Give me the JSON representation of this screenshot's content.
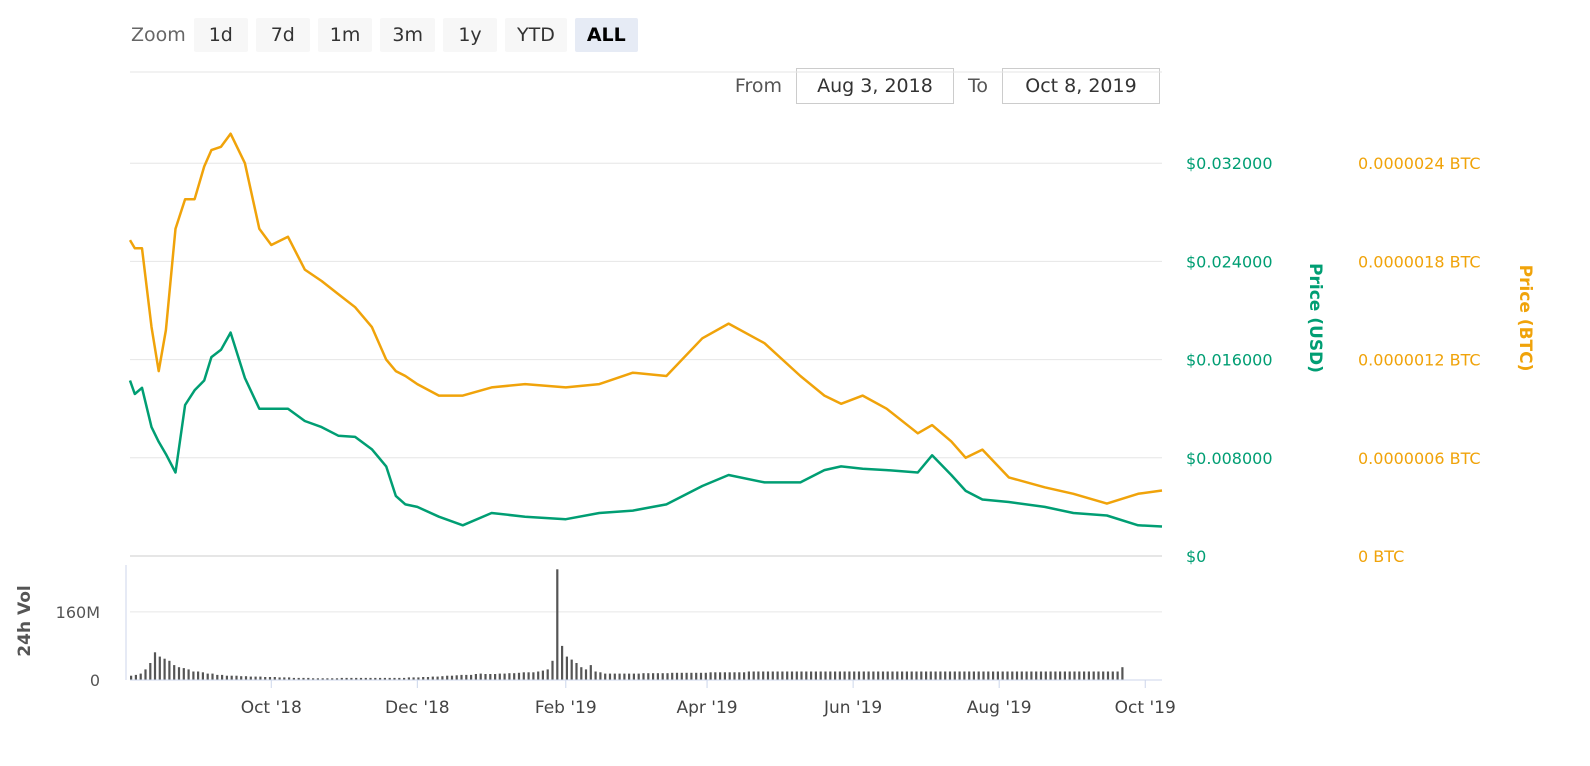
{
  "toolbar": {
    "zoom_label": "Zoom",
    "zoom_options": [
      "1d",
      "7d",
      "1m",
      "3m",
      "1y",
      "YTD",
      "ALL"
    ],
    "active_zoom": "ALL",
    "from_label": "From",
    "from_value": "Aug 3, 2018",
    "to_label": "To",
    "to_value": "Oct 8, 2019"
  },
  "chart_data": {
    "type": "line",
    "x_tick_labels": [
      "Oct '18",
      "Dec '18",
      "Feb '19",
      "Apr '19",
      "Jun '19",
      "Aug '19",
      "Oct '19"
    ],
    "x_tick_dates": [
      "2018-10-01",
      "2018-12-01",
      "2019-02-01",
      "2019-04-01",
      "2019-06-01",
      "2019-08-01",
      "2019-10-01"
    ],
    "x_range": [
      "2018-08-03",
      "2019-10-08"
    ],
    "y_usd": {
      "title": "Price (USD)",
      "range": [
        0,
        0.04
      ],
      "ticks": [
        0,
        0.008,
        0.016,
        0.024,
        0.032
      ],
      "tick_labels": [
        "$0",
        "$0.008000",
        "$0.016000",
        "$0.024000",
        "$0.032000"
      ],
      "color": "#009e73"
    },
    "y_btc": {
      "title": "Price (BTC)",
      "range": [
        0,
        3e-06
      ],
      "ticks": [
        0,
        6e-07,
        1.2e-06,
        1.8e-06,
        2.4e-06
      ],
      "tick_labels": [
        "0 BTC",
        "0.0000006 BTC",
        "0.0000012 BTC",
        "0.0000018 BTC",
        "0.0000024 BTC"
      ],
      "color": "#f0a30a"
    },
    "volume": {
      "title": "24h Vol",
      "range": [
        0,
        270000000
      ],
      "ticks": [
        0,
        160000000
      ],
      "tick_labels": [
        "0",
        "160M"
      ],
      "color": "#555555"
    },
    "grid": true,
    "series": [
      {
        "axis": "usd",
        "color": "#009e73",
        "x": [
          "2018-08-03",
          "2018-08-05",
          "2018-08-08",
          "2018-08-12",
          "2018-08-15",
          "2018-08-18",
          "2018-08-22",
          "2018-08-26",
          "2018-08-30",
          "2018-09-03",
          "2018-09-06",
          "2018-09-10",
          "2018-09-14",
          "2018-09-20",
          "2018-09-26",
          "2018-10-01",
          "2018-10-08",
          "2018-10-15",
          "2018-10-22",
          "2018-10-29",
          "2018-11-05",
          "2018-11-12",
          "2018-11-18",
          "2018-11-22",
          "2018-11-26",
          "2018-12-01",
          "2018-12-10",
          "2018-12-20",
          "2019-01-01",
          "2019-01-15",
          "2019-02-01",
          "2019-02-15",
          "2019-03-01",
          "2019-03-15",
          "2019-03-30",
          "2019-04-10",
          "2019-04-25",
          "2019-05-10",
          "2019-05-20",
          "2019-05-27",
          "2019-06-05",
          "2019-06-15",
          "2019-06-28",
          "2019-07-04",
          "2019-07-12",
          "2019-07-18",
          "2019-07-25",
          "2019-08-05",
          "2019-08-20",
          "2019-09-01",
          "2019-09-15",
          "2019-09-28",
          "2019-10-08"
        ],
        "y": [
          0.0143,
          0.0132,
          0.0137,
          0.0105,
          0.0093,
          0.0083,
          0.0068,
          0.0123,
          0.0135,
          0.0143,
          0.0162,
          0.0168,
          0.0182,
          0.0145,
          0.012,
          0.012,
          0.012,
          0.011,
          0.0105,
          0.0098,
          0.0097,
          0.0087,
          0.0073,
          0.0049,
          0.0042,
          0.004,
          0.0032,
          0.0025,
          0.0035,
          0.0032,
          0.003,
          0.0035,
          0.0037,
          0.0042,
          0.0057,
          0.0066,
          0.006,
          0.006,
          0.007,
          0.0073,
          0.0071,
          0.007,
          0.0068,
          0.0082,
          0.0066,
          0.0053,
          0.0046,
          0.0044,
          0.004,
          0.0035,
          0.0033,
          0.0025,
          0.0024
        ]
      },
      {
        "axis": "btc",
        "color": "#f0a30a",
        "x": [
          "2018-08-03",
          "2018-08-05",
          "2018-08-08",
          "2018-08-12",
          "2018-08-15",
          "2018-08-18",
          "2018-08-22",
          "2018-08-26",
          "2018-08-30",
          "2018-09-03",
          "2018-09-06",
          "2018-09-10",
          "2018-09-14",
          "2018-09-20",
          "2018-09-26",
          "2018-10-01",
          "2018-10-08",
          "2018-10-15",
          "2018-10-22",
          "2018-10-29",
          "2018-11-05",
          "2018-11-12",
          "2018-11-18",
          "2018-11-22",
          "2018-11-26",
          "2018-12-01",
          "2018-12-10",
          "2018-12-20",
          "2019-01-01",
          "2019-01-15",
          "2019-02-01",
          "2019-02-15",
          "2019-03-01",
          "2019-03-15",
          "2019-03-30",
          "2019-04-10",
          "2019-04-25",
          "2019-05-10",
          "2019-05-20",
          "2019-05-27",
          "2019-06-05",
          "2019-06-15",
          "2019-06-28",
          "2019-07-04",
          "2019-07-12",
          "2019-07-18",
          "2019-07-25",
          "2019-08-05",
          "2019-08-20",
          "2019-09-01",
          "2019-09-15",
          "2019-09-28",
          "2019-10-08"
        ],
        "y": [
          1.93e-06,
          1.88e-06,
          1.88e-06,
          1.4e-06,
          1.13e-06,
          1.38e-06,
          2e-06,
          2.18e-06,
          2.18e-06,
          2.38e-06,
          2.48e-06,
          2.5e-06,
          2.58e-06,
          2.4e-06,
          2e-06,
          1.9e-06,
          1.95e-06,
          1.75e-06,
          1.68e-06,
          1.6e-06,
          1.52e-06,
          1.4e-06,
          1.2e-06,
          1.13e-06,
          1.1e-06,
          1.05e-06,
          9.8e-07,
          9.8e-07,
          1.03e-06,
          1.05e-06,
          1.03e-06,
          1.05e-06,
          1.12e-06,
          1.1e-06,
          1.33e-06,
          1.42e-06,
          1.3e-06,
          1.1e-06,
          9.8e-07,
          9.3e-07,
          9.8e-07,
          9e-07,
          7.5e-07,
          8e-07,
          7e-07,
          6e-07,
          6.5e-07,
          4.8e-07,
          4.2e-07,
          3.8e-07,
          3.2e-07,
          3.8e-07,
          4e-07
        ]
      }
    ],
    "volume_bars": {
      "start": "2018-08-03",
      "step_days": 2,
      "values": [
        10,
        12,
        15,
        25,
        40,
        65,
        55,
        50,
        45,
        35,
        30,
        28,
        25,
        20,
        20,
        18,
        15,
        15,
        12,
        12,
        10,
        10,
        10,
        9,
        9,
        8,
        8,
        8,
        7,
        7,
        7,
        6,
        6,
        6,
        5,
        5,
        5,
        5,
        4,
        4,
        4,
        4,
        4,
        4,
        5,
        5,
        5,
        5,
        5,
        5,
        5,
        5,
        5,
        5,
        5,
        5,
        5,
        5,
        6,
        6,
        6,
        7,
        7,
        8,
        8,
        9,
        10,
        10,
        11,
        12,
        12,
        12,
        14,
        15,
        14,
        14,
        14,
        15,
        15,
        16,
        16,
        17,
        18,
        18,
        18,
        20,
        22,
        25,
        45,
        260,
        80,
        55,
        48,
        40,
        30,
        25,
        35,
        20,
        18,
        15,
        15,
        15,
        15,
        15,
        15,
        15,
        15,
        16,
        16,
        16,
        16,
        16,
        16,
        17,
        17,
        17,
        17,
        17,
        17,
        17,
        17,
        18,
        18,
        18,
        18,
        18,
        18,
        18,
        18,
        20,
        20,
        20,
        20,
        20,
        20,
        20,
        20,
        20,
        20,
        20,
        20,
        20,
        20,
        20,
        20,
        20,
        20,
        20,
        20,
        20,
        20,
        20,
        20,
        20,
        20,
        20,
        20,
        20,
        20,
        20,
        20,
        20,
        20,
        20,
        20,
        20,
        20,
        20,
        20,
        20,
        20,
        20,
        20,
        20,
        20,
        20,
        20,
        20,
        20,
        20,
        20,
        20,
        20,
        20,
        20,
        20,
        20,
        20,
        20,
        20,
        20,
        20,
        20,
        20,
        20,
        20,
        20,
        20,
        20,
        20,
        20,
        20,
        20,
        20,
        20,
        20,
        20,
        30
      ],
      "unit": "M"
    }
  }
}
